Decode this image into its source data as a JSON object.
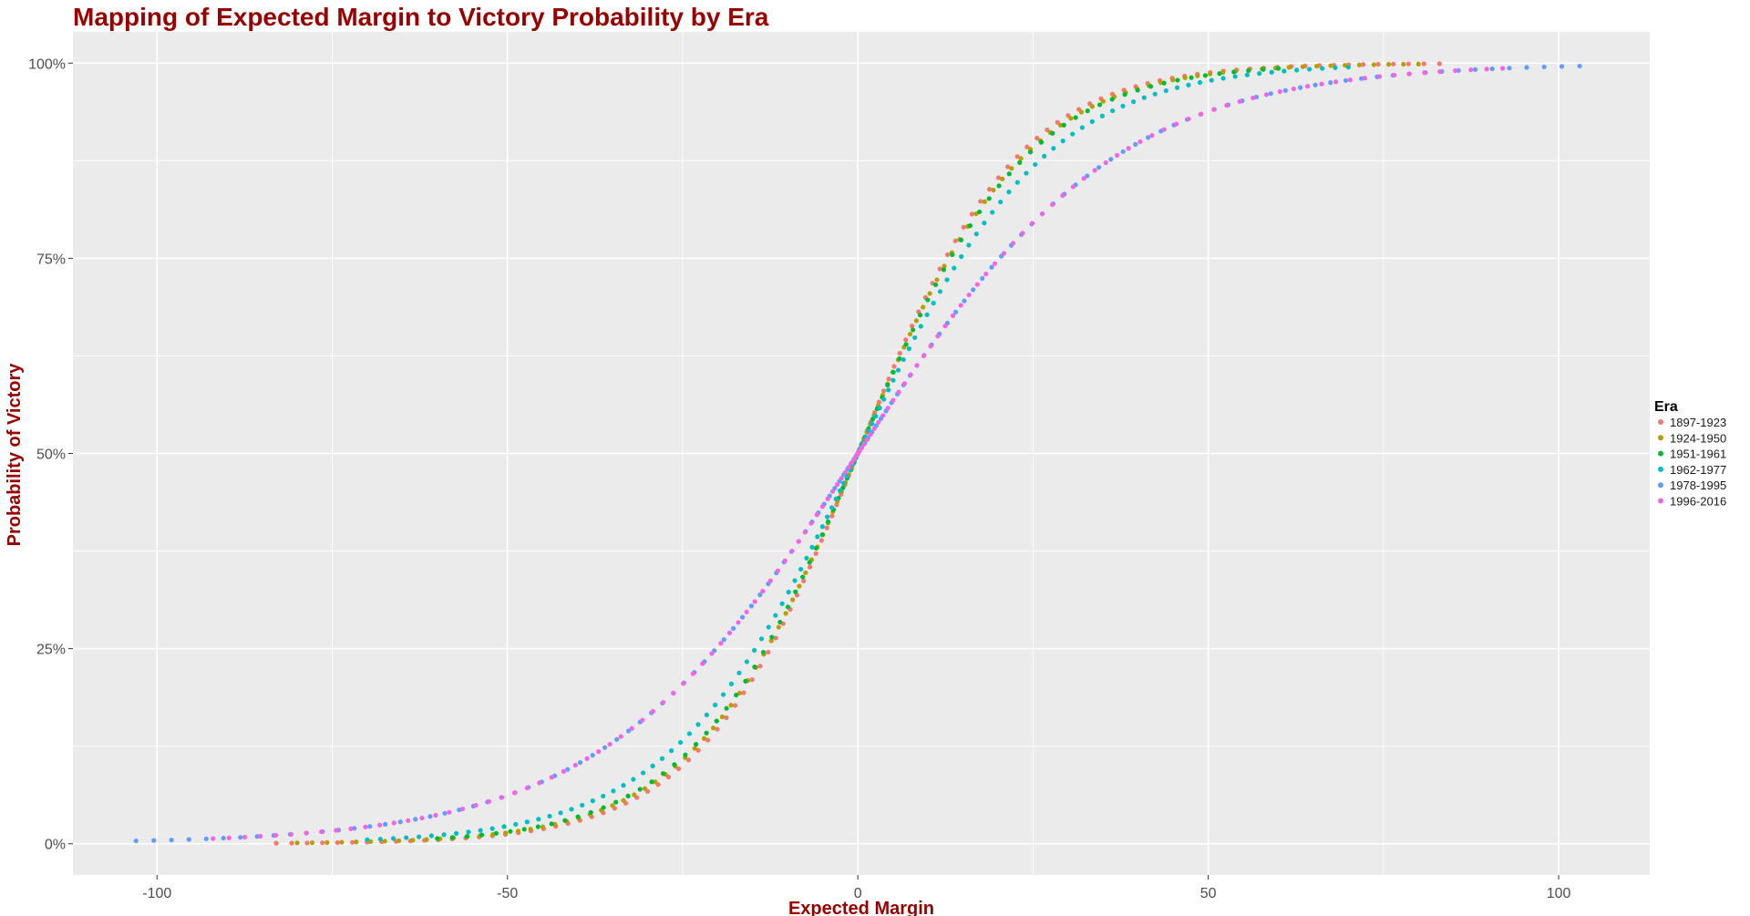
{
  "chart_data": {
    "type": "scatter",
    "title": "Mapping of Expected Margin to Victory Probability by Era",
    "xlabel": "Expected Margin",
    "ylabel": "Probability of Victory",
    "xlim": [
      -112,
      113
    ],
    "ylim": [
      -0.04,
      1.04
    ],
    "x_ticks": [
      -100,
      -50,
      0,
      50,
      100
    ],
    "x_tick_labels": [
      "-100",
      "-50",
      "0",
      "50",
      "100"
    ],
    "y_ticks": [
      0,
      0.25,
      0.5,
      0.75,
      1.0
    ],
    "y_tick_labels": [
      "0%",
      "25%",
      "50%",
      "75%",
      "100%"
    ],
    "grid": true,
    "background": "#ebebeb",
    "legend": {
      "title": "Era",
      "position": "right"
    },
    "series": [
      {
        "name": "1897-1923",
        "color": "#F8766D",
        "scale": 11.4,
        "x_min": -82,
        "x_max": 83,
        "point_count": 120
      },
      {
        "name": "1924-1950",
        "color": "#B79F00",
        "scale": 11.8,
        "x_min": -80,
        "x_max": 80,
        "point_count": 120
      },
      {
        "name": "1951-1961",
        "color": "#00BA38",
        "scale": 12.0,
        "x_min": -60,
        "x_max": 60,
        "point_count": 90
      },
      {
        "name": "1962-1977",
        "color": "#00BFC4",
        "scale": 13.3,
        "x_min": -70,
        "x_max": 70,
        "point_count": 120
      },
      {
        "name": "1978-1995",
        "color": "#619CFF",
        "scale": 18.4,
        "x_min": -103,
        "x_max": 103,
        "point_count": 130
      },
      {
        "name": "1996-2016",
        "color": "#F564E3",
        "scale": 18.4,
        "x_min": -92,
        "x_max": 92,
        "point_count": 130
      }
    ]
  }
}
